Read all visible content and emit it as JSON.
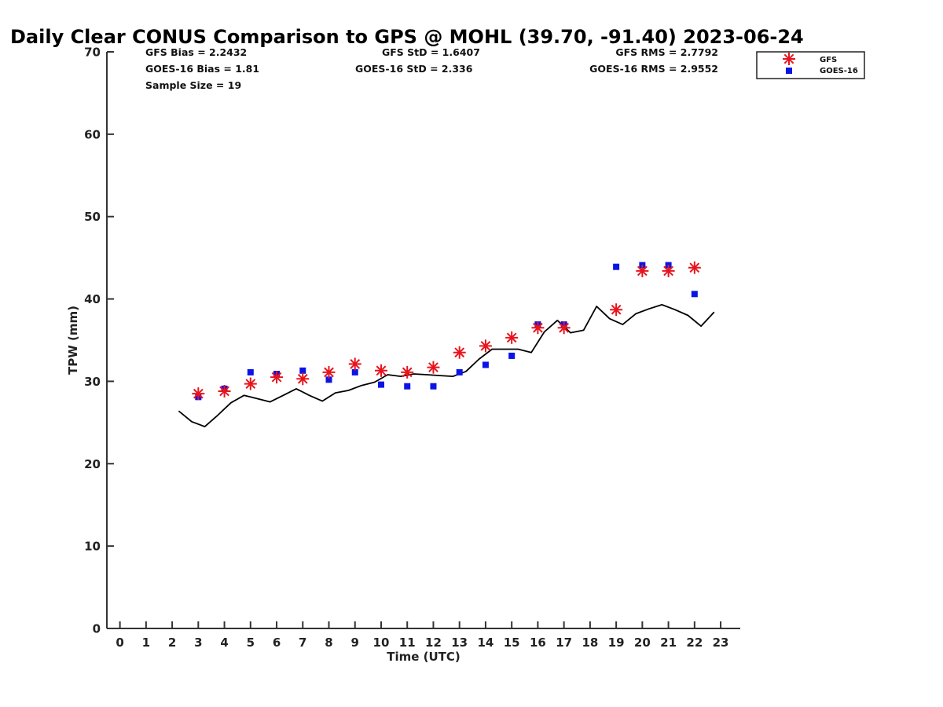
{
  "chart_data": {
    "type": "scatter",
    "title": "Daily Clear CONUS Comparison to GPS @ MOHL (39.70, -91.40) 2023-06-24",
    "xlabel": "Time (UTC)",
    "ylabel": "TPW (mm)",
    "xlim": [
      -0.5,
      23.75
    ],
    "ylim": [
      0,
      70
    ],
    "x_ticks": [
      0,
      1,
      2,
      3,
      4,
      5,
      6,
      7,
      8,
      9,
      10,
      11,
      12,
      13,
      14,
      15,
      16,
      17,
      18,
      19,
      20,
      21,
      22,
      23
    ],
    "y_ticks": [
      0,
      10,
      20,
      30,
      40,
      50,
      60,
      70
    ],
    "grid": false,
    "legend": {
      "placement": "top-right-outside",
      "entries": [
        "GFS",
        "GOES-16"
      ]
    },
    "stats": {
      "gfs_bias": "GFS Bias = 2.2432",
      "gfs_std": "GFS StD = 1.6407",
      "gfs_rms": "GFS RMS = 2.7792",
      "goes_bias": "GOES-16 Bias = 1.81",
      "goes_std": "GOES-16 StD = 2.336",
      "goes_rms": "GOES-16 RMS = 2.9552",
      "sample_size": "Sample Size = 19"
    },
    "series": [
      {
        "name": "GFS",
        "marker": "asterisk",
        "color": "#e8141c",
        "x": [
          3,
          4,
          5,
          6,
          7,
          8,
          9,
          10,
          11,
          12,
          13,
          14,
          15,
          16,
          17,
          19,
          20,
          21,
          22
        ],
        "y": [
          28.5,
          28.8,
          29.7,
          30.5,
          30.3,
          31.1,
          32.1,
          31.3,
          31.1,
          31.7,
          33.5,
          34.3,
          35.3,
          36.5,
          36.5,
          38.7,
          43.4,
          43.4,
          43.8
        ]
      },
      {
        "name": "GOES-16",
        "marker": "square",
        "color": "#0a14e6",
        "x": [
          3,
          4,
          5,
          6,
          7,
          8,
          9,
          10,
          11,
          12,
          13,
          14,
          15,
          16,
          17,
          19,
          20,
          21,
          22
        ],
        "y": [
          28.1,
          29.1,
          31.1,
          30.9,
          31.3,
          30.2,
          31.1,
          29.6,
          29.4,
          29.4,
          31.1,
          32.0,
          33.1,
          36.9,
          36.9,
          43.9,
          44.1,
          44.1,
          40.6
        ]
      },
      {
        "type": "line",
        "color": "#000000",
        "x": [
          2.25,
          2.75,
          3.25,
          3.75,
          4.25,
          4.75,
          5.25,
          5.75,
          6.25,
          6.75,
          7.25,
          7.75,
          8.25,
          8.75,
          9.25,
          9.75,
          10.25,
          10.75,
          11.25,
          11.75,
          12.25,
          12.75,
          13.25,
          13.75,
          14.25,
          14.75,
          15.25,
          15.75,
          16.25,
          16.75,
          17.25,
          17.75,
          18.25,
          18.75,
          19.25,
          19.75,
          20.25,
          20.75,
          21.25,
          21.75,
          22.25,
          22.75
        ],
        "y": [
          26.4,
          25.1,
          24.5,
          25.9,
          27.4,
          28.3,
          27.9,
          27.5,
          28.3,
          29.1,
          28.3,
          27.6,
          28.6,
          28.9,
          29.5,
          29.9,
          30.8,
          30.6,
          30.9,
          30.8,
          30.7,
          30.6,
          31.2,
          32.7,
          33.9,
          33.9,
          33.9,
          33.5,
          36.0,
          37.4,
          35.9,
          36.2,
          39.1,
          37.6,
          36.9,
          38.2,
          38.8,
          39.3,
          38.7,
          38.0,
          36.7,
          38.4
        ]
      }
    ]
  }
}
